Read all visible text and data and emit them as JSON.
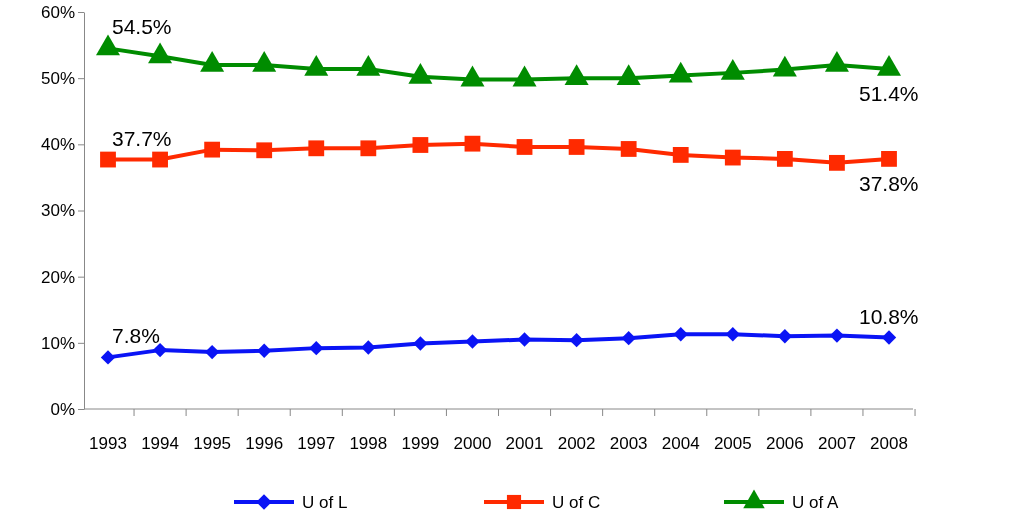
{
  "chart_data": {
    "type": "line",
    "categories": [
      "1993",
      "1994",
      "1995",
      "1996",
      "1997",
      "1998",
      "1999",
      "2000",
      "2001",
      "2002",
      "2003",
      "2004",
      "2005",
      "2006",
      "2007",
      "2008"
    ],
    "series": [
      {
        "name": "U of L",
        "color": "#0a14f5",
        "marker": "diamond",
        "values": [
          7.8,
          8.9,
          8.6,
          8.8,
          9.2,
          9.3,
          9.9,
          10.2,
          10.5,
          10.4,
          10.7,
          11.3,
          11.3,
          11.0,
          11.1,
          10.8
        ]
      },
      {
        "name": "U of C",
        "color": "#ff2a00",
        "marker": "square",
        "values": [
          37.7,
          37.7,
          39.2,
          39.1,
          39.4,
          39.4,
          39.9,
          40.1,
          39.6,
          39.6,
          39.3,
          38.4,
          38.0,
          37.8,
          37.2,
          37.8
        ]
      },
      {
        "name": "U of A",
        "color": "#008c00",
        "marker": "triangle",
        "values": [
          54.5,
          53.3,
          52.0,
          52.0,
          51.4,
          51.4,
          50.2,
          49.8,
          49.8,
          50.0,
          50.0,
          50.4,
          50.8,
          51.3,
          52.0,
          51.4
        ]
      }
    ],
    "ylim": [
      0,
      60
    ],
    "yticks": [
      {
        "value": 0,
        "label": "0%"
      },
      {
        "value": 10,
        "label": "10%"
      },
      {
        "value": 20,
        "label": "20%"
      },
      {
        "value": 30,
        "label": "30%"
      },
      {
        "value": 40,
        "label": "40%"
      },
      {
        "value": 50,
        "label": "50%"
      },
      {
        "value": 60,
        "label": "60%"
      }
    ],
    "annotations": [
      {
        "text": "54.5%",
        "x": "1993",
        "y": 54.5
      },
      {
        "text": "51.4%",
        "x": "2008",
        "y": 51.4
      },
      {
        "text": "37.7%",
        "x": "1993",
        "y": 37.7
      },
      {
        "text": "37.8%",
        "x": "2008",
        "y": 37.8
      },
      {
        "text": "7.8%",
        "x": "1993",
        "y": 7.8
      },
      {
        "text": "10.8%",
        "x": "2008",
        "y": 10.8
      }
    ],
    "legend": "bottom",
    "grid": false
  }
}
